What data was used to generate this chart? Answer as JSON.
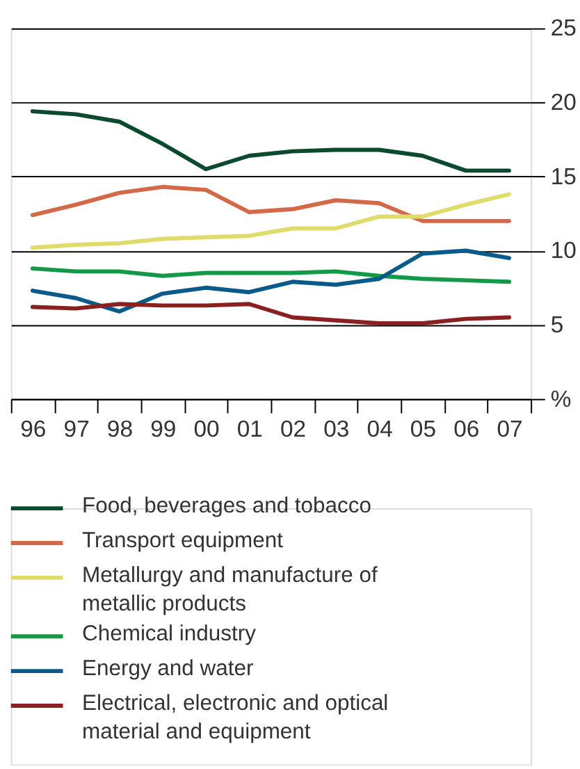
{
  "chart_data": {
    "type": "line",
    "categories": [
      "96",
      "97",
      "98",
      "99",
      "00",
      "01",
      "02",
      "03",
      "04",
      "05",
      "06",
      "07"
    ],
    "series": [
      {
        "name": "Food, beverages and tobacco",
        "color": "#0b4a2e",
        "values": [
          19.4,
          19.2,
          18.7,
          17.2,
          15.5,
          16.4,
          16.7,
          16.8,
          16.8,
          16.4,
          15.4,
          15.4
        ]
      },
      {
        "name": "Transport equipment",
        "color": "#d4694a",
        "values": [
          12.4,
          13.1,
          13.9,
          14.3,
          14.1,
          12.6,
          12.8,
          13.4,
          13.2,
          12.0,
          12.0,
          12.0
        ]
      },
      {
        "name": "Metallurgy and manufacture of metallic products",
        "color": "#e0dc6c",
        "values": [
          10.2,
          10.4,
          10.5,
          10.8,
          10.9,
          11.0,
          11.5,
          11.5,
          12.3,
          12.3,
          13.1,
          13.8
        ]
      },
      {
        "name": "Chemical industry",
        "color": "#129a48",
        "values": [
          8.8,
          8.6,
          8.6,
          8.3,
          8.5,
          8.5,
          8.5,
          8.6,
          8.3,
          8.1,
          8.0,
          7.9
        ]
      },
      {
        "name": "Energy and water",
        "color": "#0a5a8a",
        "values": [
          7.3,
          6.8,
          5.9,
          7.1,
          7.5,
          7.2,
          7.9,
          7.7,
          8.1,
          9.8,
          10.0,
          9.5
        ]
      },
      {
        "name": "Electrical, electronic and optical material and equipment",
        "color": "#8a2020",
        "values": [
          6.2,
          6.1,
          6.4,
          6.3,
          6.3,
          6.4,
          5.5,
          5.3,
          5.1,
          5.1,
          5.4,
          5.5
        ]
      }
    ],
    "ylim": [
      0,
      25
    ],
    "yticks": [
      {
        "value": 0,
        "label": "%"
      },
      5,
      10,
      15,
      20,
      25
    ],
    "grid": "y",
    "legend": "bottom",
    "line_style": "solid"
  }
}
